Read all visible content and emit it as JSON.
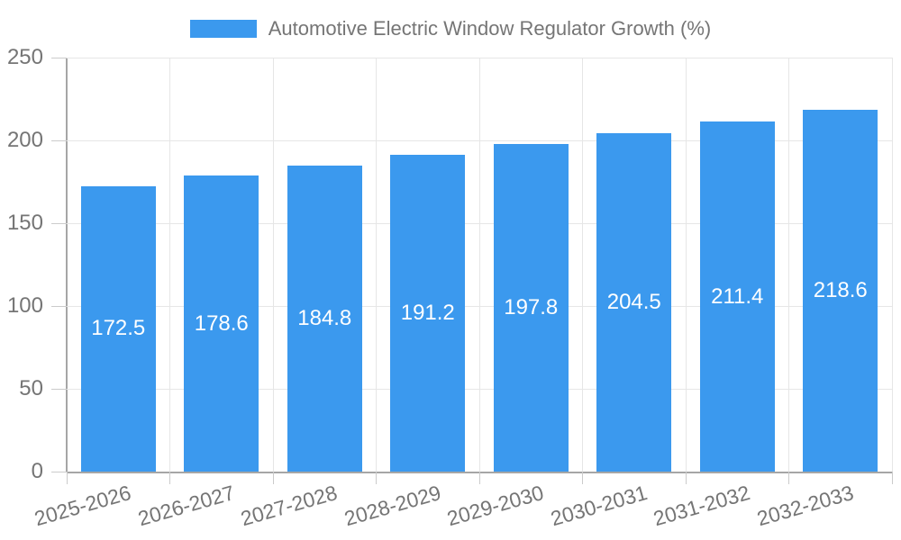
{
  "chart_data": {
    "type": "bar",
    "title": "Automotive Electric Window Regulator Growth (%)",
    "categories": [
      "2025-2026",
      "2026-2027",
      "2027-2028",
      "2028-2029",
      "2029-2030",
      "2030-2031",
      "2031-2032",
      "2032-2033"
    ],
    "values": [
      172.5,
      178.6,
      184.8,
      191.2,
      197.8,
      204.5,
      211.4,
      218.6
    ],
    "value_labels": [
      "172.5",
      "178.6",
      "184.8",
      "191.2",
      "197.8",
      "204.5",
      "211.4",
      "218.6"
    ],
    "xlabel": "",
    "ylabel": "",
    "ylim": [
      0,
      250
    ],
    "yticks": [
      0,
      50,
      100,
      150,
      200,
      250
    ],
    "ytick_labels": [
      "0",
      "50",
      "100",
      "150",
      "200",
      "250"
    ],
    "grid": true,
    "legend_position": "top",
    "value_labels_inside_bars": true
  },
  "legend": {
    "label": "Automotive Electric Window Regulator Growth (%)"
  },
  "colors": {
    "bar": "#3b99ee",
    "bar_value_text": "#ffffff",
    "axis_line": "#a6a6a6",
    "grid_line": "#e6e6e6",
    "tick_mark": "#cbcbcb",
    "text": "#757575",
    "background": "#ffffff"
  }
}
